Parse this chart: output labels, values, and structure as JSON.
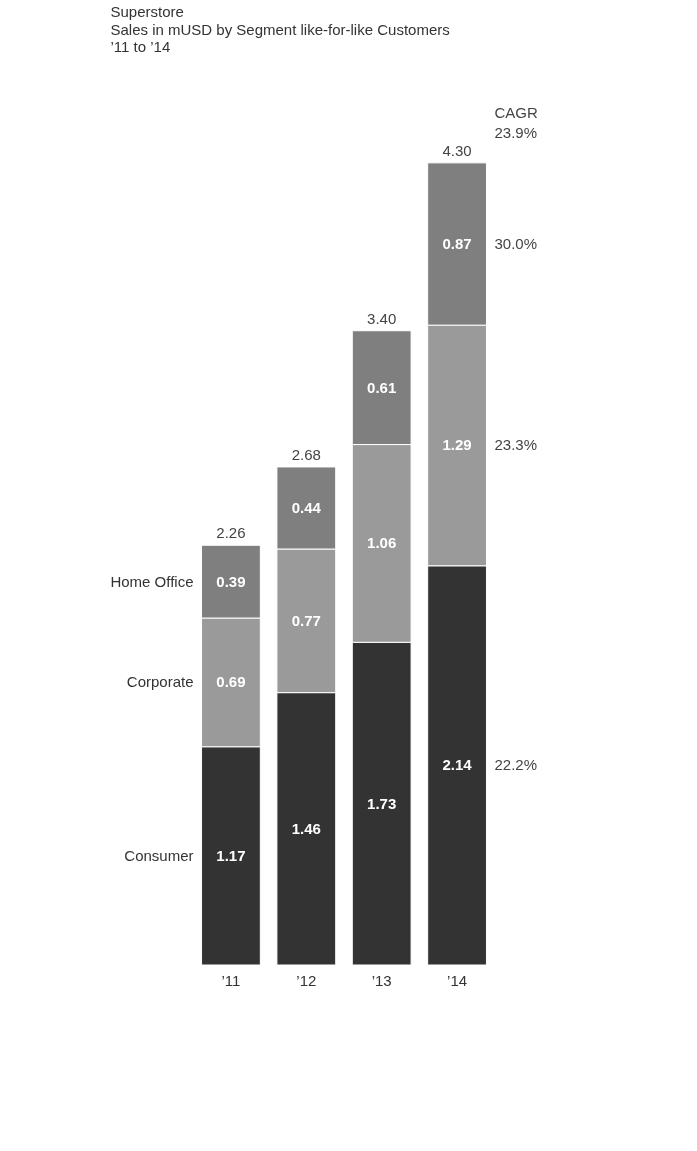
{
  "chart_data": {
    "type": "bar",
    "title": "Superstore",
    "subtitle": [
      "Sales in mUSD by Segment like-for-like Customers",
      "’11 to ’14"
    ],
    "categories": [
      "’11",
      "’12",
      "’13",
      "’14"
    ],
    "stacked": true,
    "data_labels": true,
    "legend": "left",
    "grid": false,
    "series": [
      {
        "name": "Consumer",
        "color": "#333333",
        "values": [
          1.17,
          1.46,
          1.73,
          2.14
        ]
      },
      {
        "name": "Corporate",
        "color": "#9a9a9a",
        "values": [
          0.69,
          0.77,
          1.06,
          1.29
        ]
      },
      {
        "name": "Home Office",
        "color": "#7f7f7f",
        "values": [
          0.39,
          0.44,
          0.61,
          0.87
        ]
      }
    ],
    "totals": [
      "2.26",
      "2.68",
      "3.40",
      "4.30"
    ],
    "annotations": [
      "CAGR",
      "23.9%",
      "30.0%",
      "23.3%",
      "22.2%"
    ]
  }
}
